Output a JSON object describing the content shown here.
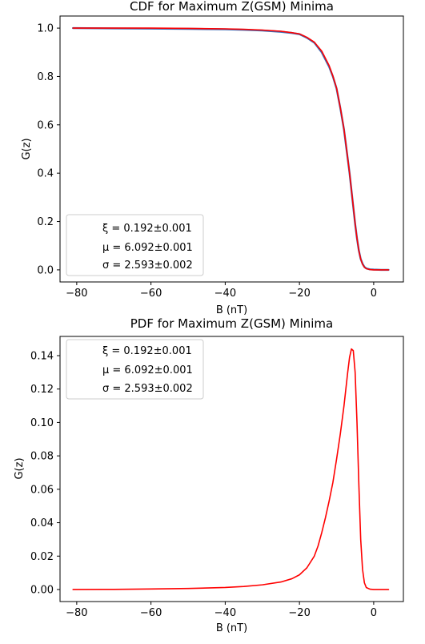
{
  "figure": {
    "background": "#ffffff",
    "curve_color": "#ff0000",
    "data_color": "#3b6bb5"
  },
  "chart_data": [
    {
      "type": "line",
      "title": "CDF for Maximum Z(GSM) Minima",
      "xlabel": "B (nT)",
      "ylabel": "G(z)",
      "xlim": [
        -84.5,
        8
      ],
      "ylim": [
        -0.05,
        1.05
      ],
      "xticks": [
        -80,
        -60,
        -40,
        -20,
        0
      ],
      "xtick_labels": [
        "−80",
        "−60",
        "−40",
        "−20",
        "0"
      ],
      "yticks": [
        0.0,
        0.2,
        0.4,
        0.6,
        0.8,
        1.0
      ],
      "ytick_labels": [
        "0.0",
        "0.2",
        "0.4",
        "0.6",
        "0.8",
        "1.0"
      ],
      "grid": false,
      "legend_position": "lower-left",
      "legend": [
        "ξ = 0.192±0.001",
        "μ = 6.092±0.001",
        "σ = 2.593±0.002"
      ],
      "series": [
        {
          "role": "empirical",
          "color": "#3b6bb5",
          "x": [
            -81,
            -70,
            -60,
            -50,
            -40,
            -35,
            -30,
            -25,
            -22,
            -20,
            -18,
            -16,
            -14,
            -12,
            -11,
            -10,
            -9,
            -8,
            -7.5,
            -7,
            -6.5,
            -6,
            -5.5,
            -5,
            -4.5,
            -4,
            -3.5,
            -3,
            -2.5,
            -2,
            -1,
            0,
            2,
            4
          ],
          "y": [
            1.0,
            0.999,
            0.998,
            0.997,
            0.995,
            0.993,
            0.99,
            0.985,
            0.98,
            0.975,
            0.96,
            0.94,
            0.9,
            0.84,
            0.8,
            0.75,
            0.67,
            0.58,
            0.52,
            0.46,
            0.4,
            0.33,
            0.26,
            0.19,
            0.13,
            0.08,
            0.045,
            0.025,
            0.012,
            0.006,
            0.002,
            0.001,
            0.0,
            0.0
          ]
        },
        {
          "role": "fit",
          "color": "#ff0000",
          "x": [
            -81,
            -70,
            -60,
            -50,
            -40,
            -35,
            -30,
            -25,
            -22,
            -20,
            -18,
            -16,
            -14,
            -12,
            -11,
            -10,
            -9,
            -8,
            -7.5,
            -7,
            -6.5,
            -6,
            -5.5,
            -5,
            -4.5,
            -4,
            -3.5,
            -3,
            -2.5,
            -2,
            -1,
            0,
            2,
            4
          ],
          "y": [
            1.0,
            1.0,
            1.0,
            0.999,
            0.997,
            0.995,
            0.992,
            0.987,
            0.981,
            0.976,
            0.962,
            0.942,
            0.905,
            0.845,
            0.802,
            0.752,
            0.672,
            0.582,
            0.522,
            0.462,
            0.4,
            0.332,
            0.262,
            0.192,
            0.13,
            0.08,
            0.045,
            0.023,
            0.011,
            0.005,
            0.001,
            0.0,
            0.0,
            0.0
          ]
        }
      ]
    },
    {
      "type": "line",
      "title": "PDF for Maximum Z(GSM) Minima",
      "xlabel": "B (nT)",
      "ylabel": "G(z)",
      "xlim": [
        -84.5,
        8
      ],
      "ylim": [
        -0.0072,
        0.1515
      ],
      "xticks": [
        -80,
        -60,
        -40,
        -20,
        0
      ],
      "xtick_labels": [
        "−80",
        "−60",
        "−40",
        "−20",
        "0"
      ],
      "yticks": [
        0.0,
        0.02,
        0.04,
        0.06,
        0.08,
        0.1,
        0.12,
        0.14
      ],
      "ytick_labels": [
        "0.00",
        "0.02",
        "0.04",
        "0.06",
        "0.08",
        "0.10",
        "0.12",
        "0.14"
      ],
      "grid": false,
      "legend_position": "upper-left",
      "legend": [
        "ξ = 0.192±0.001",
        "μ = 6.092±0.001",
        "σ = 2.593±0.002"
      ],
      "series": [
        {
          "role": "fit",
          "color": "#ff0000",
          "x": [
            -81,
            -70,
            -60,
            -50,
            -40,
            -35,
            -30,
            -25,
            -22,
            -20,
            -18,
            -16,
            -15,
            -14,
            -13,
            -12,
            -11,
            -10,
            -9,
            -8,
            -7.5,
            -7,
            -6.5,
            -6,
            -5.5,
            -5,
            -4.5,
            -4,
            -3.5,
            -3,
            -2.5,
            -2,
            -1,
            0,
            2,
            4
          ],
          "y": [
            0.0,
            0.0001,
            0.0003,
            0.0006,
            0.0012,
            0.0018,
            0.0028,
            0.0045,
            0.0065,
            0.0088,
            0.013,
            0.02,
            0.026,
            0.034,
            0.043,
            0.053,
            0.064,
            0.078,
            0.093,
            0.11,
            0.12,
            0.13,
            0.139,
            0.144,
            0.143,
            0.13,
            0.1,
            0.063,
            0.03,
            0.012,
            0.004,
            0.0012,
            0.0002,
            0.0,
            0.0,
            0.0
          ]
        }
      ]
    }
  ]
}
